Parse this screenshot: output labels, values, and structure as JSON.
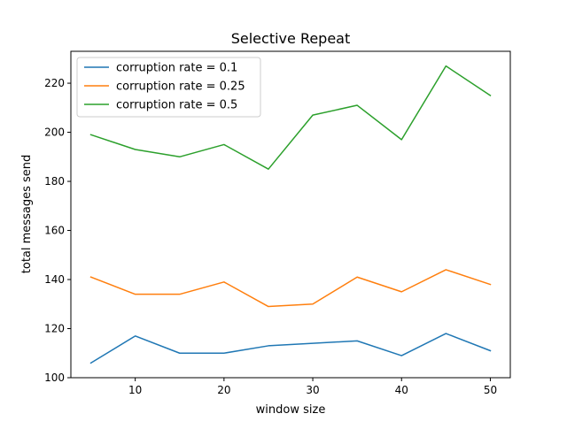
{
  "chart_data": {
    "type": "line",
    "title": "Selective Repeat",
    "xlabel": "window size",
    "ylabel": "total messages send",
    "x": [
      5,
      10,
      15,
      20,
      25,
      30,
      35,
      40,
      45,
      50
    ],
    "xlim": [
      2.75,
      52.25
    ],
    "ylim": [
      100,
      233
    ],
    "xticks": [
      10,
      20,
      30,
      40,
      50
    ],
    "yticks": [
      100,
      120,
      140,
      160,
      180,
      200,
      220
    ],
    "grid": false,
    "legend_position": "upper left",
    "series": [
      {
        "name": "corruption rate = 0.1",
        "color": "#1f77b4",
        "values": [
          106,
          117,
          110,
          110,
          113,
          114,
          115,
          109,
          118,
          111
        ]
      },
      {
        "name": "corruption rate = 0.25",
        "color": "#ff7f0e",
        "values": [
          141,
          134,
          134,
          139,
          129,
          130,
          141,
          135,
          144,
          138
        ]
      },
      {
        "name": "corruption rate = 0.5",
        "color": "#2ca02c",
        "values": [
          199,
          193,
          190,
          195,
          185,
          207,
          211,
          197,
          227,
          215
        ]
      }
    ]
  }
}
